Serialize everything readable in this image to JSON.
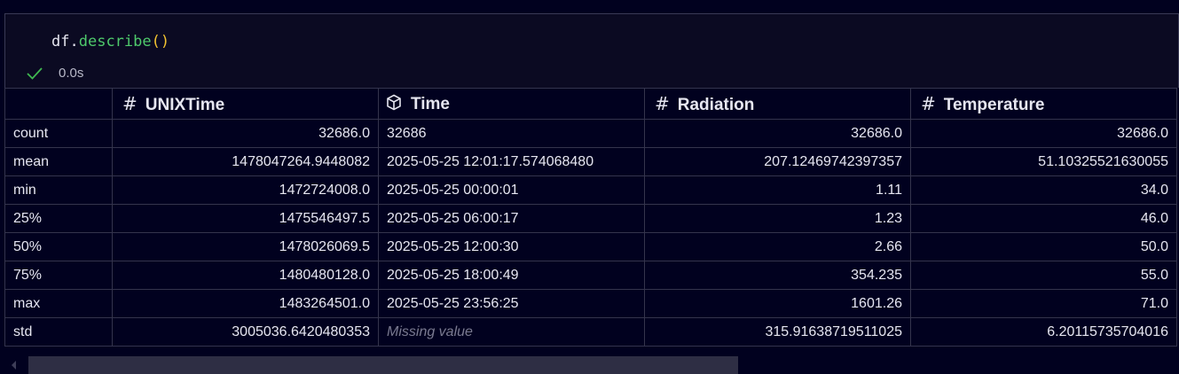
{
  "cell": {
    "code": {
      "object": "df",
      "dot": ".",
      "method": "describe",
      "parens": "()"
    },
    "status": {
      "icon": "check-icon",
      "duration": "0.0s"
    }
  },
  "table": {
    "columns": [
      {
        "icon": "hash-icon",
        "label": "UNIXTime"
      },
      {
        "icon": "cube-icon",
        "label": "Time"
      },
      {
        "icon": "hash-icon",
        "label": "Radiation"
      },
      {
        "icon": "hash-icon",
        "label": "Temperature"
      }
    ],
    "rows": [
      {
        "index": "count",
        "unix": "32686.0",
        "time": "32686",
        "radiation": "32686.0",
        "temperature": "32686.0"
      },
      {
        "index": "mean",
        "unix": "1478047264.9448082",
        "time": "2025-05-25 12:01:17.574068480",
        "radiation": "207.12469742397357",
        "temperature": "51.10325521630055"
      },
      {
        "index": "min",
        "unix": "1472724008.0",
        "time": "2025-05-25 00:00:01",
        "radiation": "1.11",
        "temperature": "34.0"
      },
      {
        "index": "25%",
        "unix": "1475546497.5",
        "time": "2025-05-25 06:00:17",
        "radiation": "1.23",
        "temperature": "46.0"
      },
      {
        "index": "50%",
        "unix": "1478026069.5",
        "time": "2025-05-25 12:00:30",
        "radiation": "2.66",
        "temperature": "50.0"
      },
      {
        "index": "75%",
        "unix": "1480480128.0",
        "time": "2025-05-25 18:00:49",
        "radiation": "354.235",
        "temperature": "55.0"
      },
      {
        "index": "max",
        "unix": "1483264501.0",
        "time": "2025-05-25 23:56:25",
        "radiation": "1601.26",
        "temperature": "71.0"
      },
      {
        "index": "std",
        "unix": "3005036.6420480353",
        "time": "Missing value",
        "radiation": "315.91638719511025",
        "temperature": "6.20115735704016"
      }
    ]
  },
  "colors": {
    "background": "#01011f",
    "method": "#4ec96b",
    "parens": "#f2c230",
    "missing": "#7a7a90"
  }
}
